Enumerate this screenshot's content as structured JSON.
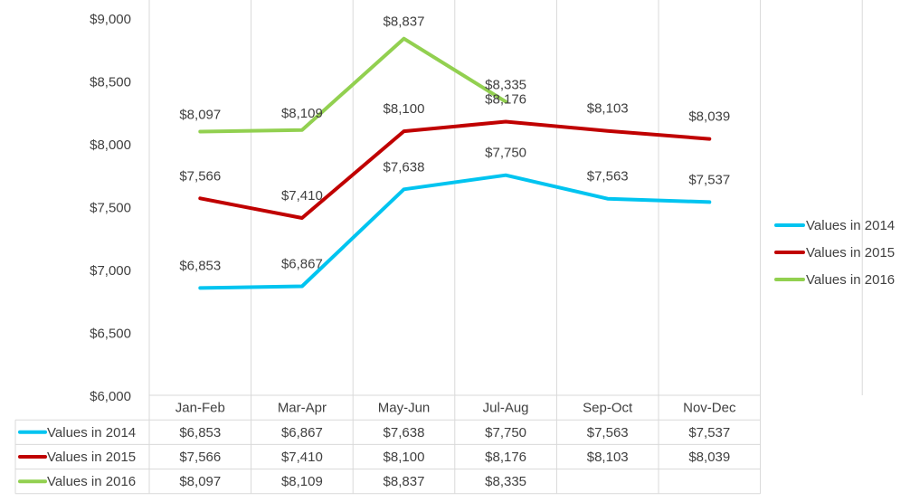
{
  "chart_data": {
    "type": "line",
    "title": "",
    "xlabel": "",
    "ylabel": "",
    "ylim": [
      6000,
      9000
    ],
    "ytick_step": 500,
    "value_prefix": "$",
    "categories": [
      "Jan-Feb",
      "Mar-Apr",
      "May-Jun",
      "Jul-Aug",
      "Sep-Oct",
      "Nov-Dec"
    ],
    "series": [
      {
        "name": "Values in 2014",
        "color": "#00c4f0",
        "values": [
          6853,
          6867,
          7638,
          7750,
          7563,
          7537
        ]
      },
      {
        "name": "Values in 2015",
        "color": "#c00000",
        "values": [
          7566,
          7410,
          8100,
          8176,
          8103,
          8039
        ]
      },
      {
        "name": "Values in 2016",
        "color": "#92d050",
        "values": [
          8097,
          8109,
          8837,
          8335,
          null,
          null
        ]
      }
    ],
    "grid": true,
    "legend_position": "right",
    "data_table": true
  }
}
